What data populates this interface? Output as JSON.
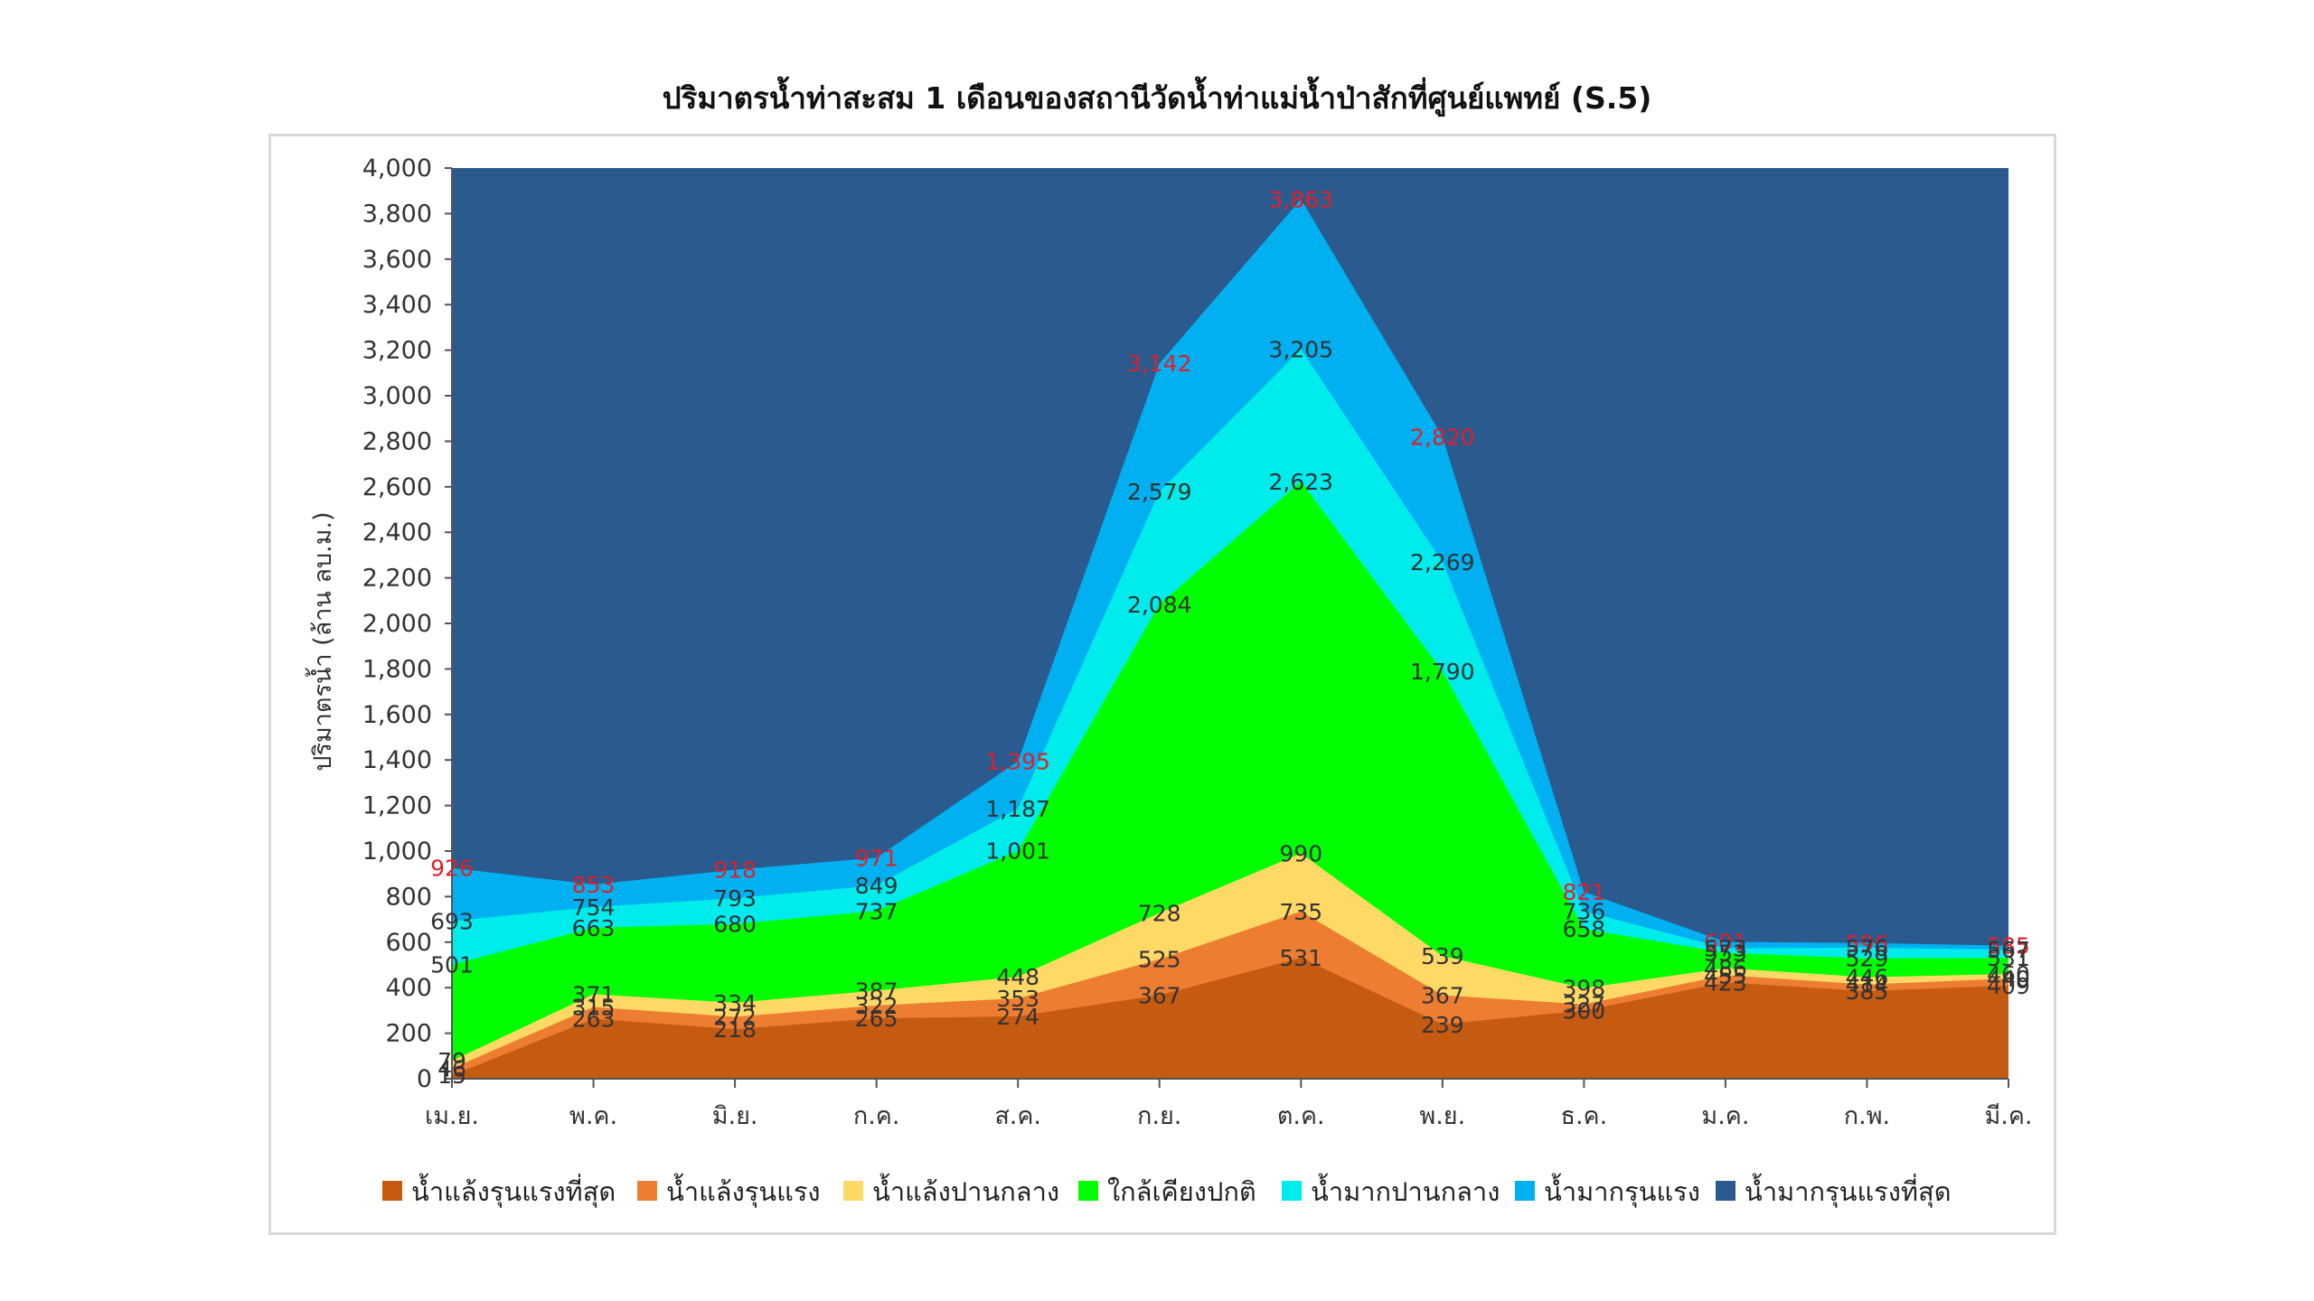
{
  "chart_data": {
    "type": "area",
    "stacked": false,
    "title": "ปริมาตรน้ำท่าสะสม 1 เดือนของสถานีวัดน้ำท่าแม่น้ำป่าสักที่ศูนย์แพทย์ (S.5)",
    "ylabel": "ปริมาตรน้ำ (ล้าน ลบ.ม.)",
    "xlabel": "",
    "categories": [
      "เม.ย.",
      "พ.ค.",
      "มิ.ย.",
      "ก.ค.",
      "ส.ค.",
      "ก.ย.",
      "ต.ค.",
      "พ.ย.",
      "ธ.ค.",
      "ม.ค.",
      "ก.พ.",
      "มี.ค."
    ],
    "ylim": [
      0,
      4000
    ],
    "yticks": [
      0,
      200,
      400,
      600,
      800,
      1000,
      1200,
      1400,
      1600,
      1800,
      2000,
      2200,
      2400,
      2600,
      2800,
      3000,
      3200,
      3400,
      3600,
      3800,
      4000
    ],
    "ytick_labels": [
      "0",
      "200",
      "400",
      "600",
      "800",
      "1,000",
      "1,200",
      "1,400",
      "1,600",
      "1,800",
      "2,000",
      "2,200",
      "2,400",
      "2,600",
      "2,800",
      "3,000",
      "3,200",
      "3,400",
      "3,600",
      "3,800",
      "4,000"
    ],
    "grid": false,
    "legend_position": "bottom",
    "plot_background": "#2a5a8e",
    "series": [
      {
        "name": "น้ำมากรุนแรงที่สุด",
        "color": "#2a5a8e",
        "fill_to_top": true,
        "values": null
      },
      {
        "name": "น้ำมากรุนแรง",
        "color": "#00b0f0",
        "label_color": "#e0202a",
        "values": [
          926,
          853,
          918,
          971,
          1395,
          3142,
          3863,
          2820,
          821,
          601,
          596,
          585
        ],
        "labels": [
          "926",
          "853",
          "918",
          "971",
          "1,395",
          "3,142",
          "3,863",
          "2,820",
          "821",
          "601",
          "596",
          "585"
        ]
      },
      {
        "name": "น้ำมากปานกลาง",
        "color": "#00ecec",
        "label_color": "#333333",
        "values": [
          693,
          754,
          793,
          849,
          1187,
          2579,
          3205,
          2269,
          736,
          573,
          576,
          567
        ],
        "labels": [
          "693",
          "754",
          "793",
          "849",
          "1,187",
          "2,579",
          "3,205",
          "2,269",
          "736",
          "573",
          "576",
          "567"
        ]
      },
      {
        "name": "ใกล้เคียงปกติ",
        "color": "#00ff00",
        "label_color": "#333333",
        "values": [
          501,
          663,
          680,
          737,
          1001,
          2084,
          2623,
          1790,
          658,
          553,
          529,
          531
        ],
        "labels": [
          "501",
          "663",
          "680",
          "737",
          "1,001",
          "2,084",
          "2,623",
          "1,790",
          "658",
          "553",
          "529",
          "531"
        ]
      },
      {
        "name": "น้ำแล้งปานกลาง",
        "color": "#ffd966",
        "label_color": "#333333",
        "values": [
          79,
          371,
          334,
          387,
          448,
          728,
          990,
          539,
          398,
          486,
          446,
          460
        ],
        "labels": [
          "79",
          "371",
          "334",
          "387",
          "448",
          "728",
          "990",
          "539",
          "398",
          "486",
          "446",
          "460"
        ]
      },
      {
        "name": "น้ำแล้งรุนแรง",
        "color": "#ed7d31",
        "label_color": "#333333",
        "values": [
          46,
          315,
          272,
          322,
          353,
          525,
          735,
          367,
          327,
          455,
          414,
          440
        ],
        "labels": [
          "46",
          "315",
          "272",
          "322",
          "353",
          "525",
          "735",
          "367",
          "327",
          "455",
          "414",
          "440"
        ]
      },
      {
        "name": "น้ำแล้งรุนแรงที่สุด",
        "color": "#c55a11",
        "label_color": "#333333",
        "values": [
          15,
          263,
          218,
          265,
          274,
          367,
          531,
          239,
          300,
          423,
          385,
          409
        ],
        "labels": [
          "15",
          "263",
          "218",
          "265",
          "274",
          "367",
          "531",
          "239",
          "300",
          "423",
          "385",
          "409"
        ]
      }
    ],
    "legend": [
      {
        "name": "น้ำแล้งรุนแรงที่สุด",
        "color": "#c55a11"
      },
      {
        "name": "น้ำแล้งรุนแรง",
        "color": "#ed7d31"
      },
      {
        "name": "น้ำแล้งปานกลาง",
        "color": "#ffd966"
      },
      {
        "name": "ใกล้เคียงปกติ",
        "color": "#00ff00"
      },
      {
        "name": "น้ำมากปานกลาง",
        "color": "#00ecec"
      },
      {
        "name": "น้ำมากรุนแรง",
        "color": "#00b0f0"
      },
      {
        "name": "น้ำมากรุนแรงที่สุด",
        "color": "#2a5a8e"
      }
    ]
  }
}
